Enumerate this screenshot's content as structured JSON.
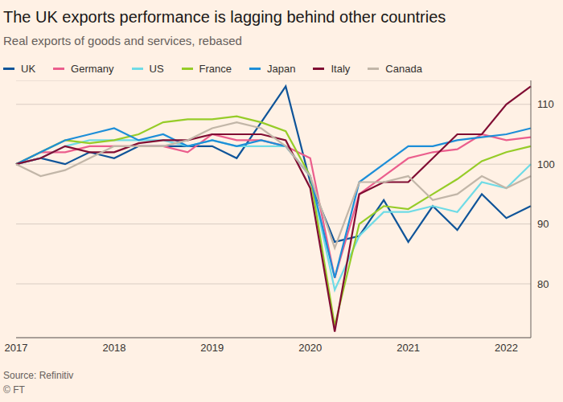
{
  "chart_data": {
    "type": "line",
    "title": "The UK exports performance is lagging behind other countries",
    "subtitle": "Real exports of goods and services, rebased",
    "annotations": [
      "Source: Refinitiv",
      "© FT"
    ],
    "categories": [
      "2017",
      null,
      null,
      null,
      "2018",
      null,
      null,
      null,
      "2019",
      null,
      null,
      null,
      "2020",
      null,
      null,
      null,
      "2021",
      null,
      null,
      null,
      "2022",
      null
    ],
    "series": [
      {
        "name": "UK",
        "color": "#0f5499",
        "values": [
          100,
          101,
          100,
          102,
          101,
          103,
          103,
          103,
          103,
          101,
          107,
          113,
          97,
          87,
          88,
          94,
          87,
          93,
          89,
          95,
          91,
          93
        ]
      },
      {
        "name": "Germany",
        "color": "#eb5e8d",
        "values": [
          100,
          102,
          102,
          103,
          103,
          103,
          103,
          102,
          105,
          104,
          104,
          103,
          101,
          81,
          95,
          98,
          101,
          102,
          102.5,
          105,
          104,
          104.5
        ]
      },
      {
        "name": "US",
        "color": "#6fdbe6",
        "values": [
          100,
          101,
          103,
          104,
          104,
          104,
          104,
          103,
          104,
          103,
          103,
          103,
          98,
          79,
          88,
          92,
          92,
          93,
          92,
          97,
          96,
          100
        ]
      },
      {
        "name": "France",
        "color": "#96cc28",
        "values": [
          100,
          102,
          104,
          103.5,
          104,
          105,
          107,
          107.5,
          107.5,
          108,
          107,
          105.5,
          98,
          73,
          90,
          93,
          92.5,
          95,
          97.5,
          100.5,
          102,
          103
        ]
      },
      {
        "name": "Japan",
        "color": "#1d8ed8",
        "values": [
          100,
          102,
          104,
          105,
          106,
          104,
          105,
          103,
          104,
          103,
          104,
          103,
          98,
          81,
          97,
          100,
          103,
          103,
          104,
          104.5,
          105,
          106
        ]
      },
      {
        "name": "Italy",
        "color": "#800d33",
        "values": [
          100,
          101,
          103,
          102,
          102,
          103.5,
          104,
          104,
          105,
          105,
          105,
          104,
          96,
          72,
          95,
          97,
          97,
          101,
          105,
          105,
          110,
          113
        ]
      },
      {
        "name": "Canada",
        "color": "#c2b6a8",
        "values": [
          100,
          98,
          99,
          101,
          103,
          103,
          103,
          104,
          106,
          107,
          106,
          103,
          98,
          86,
          97,
          97,
          98,
          94,
          95,
          98,
          96,
          98
        ]
      }
    ],
    "ylim": [
      71,
      114
    ],
    "yticks": [
      80,
      90,
      100,
      110
    ],
    "grid": true,
    "legend": "top"
  }
}
